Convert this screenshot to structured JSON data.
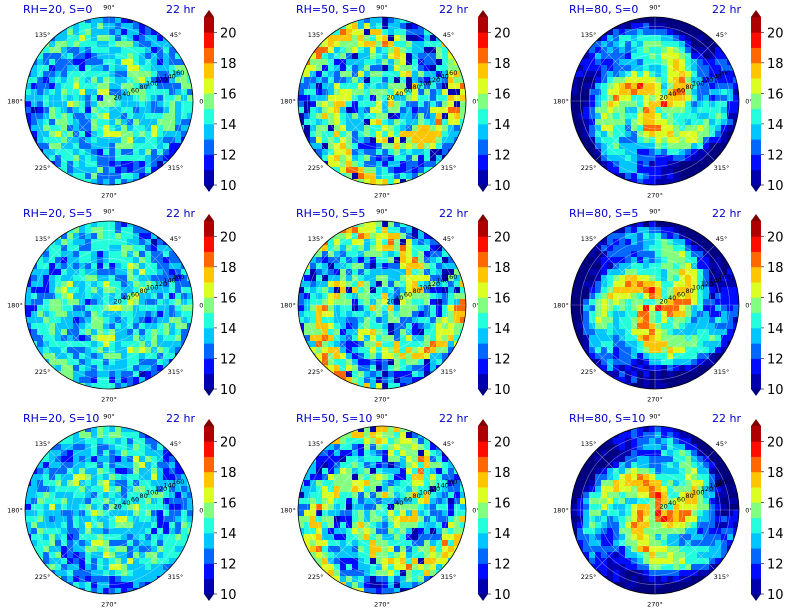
{
  "chart_data": {
    "type": "heatmap",
    "layout": {
      "rows": 3,
      "cols": 3
    },
    "angle_ticks": [
      {
        "deg": 90,
        "label": "90°"
      },
      {
        "deg": 45,
        "label": "45°"
      },
      {
        "deg": 0,
        "label": "0°"
      },
      {
        "deg": 315,
        "label": "315°"
      },
      {
        "deg": 270,
        "label": "270°"
      },
      {
        "deg": 225,
        "label": "225°"
      },
      {
        "deg": 180,
        "label": "180°"
      },
      {
        "deg": 135,
        "label": "135°"
      }
    ],
    "radial_ticks": [
      20,
      40,
      60,
      80,
      100,
      120,
      140,
      160
    ],
    "radial_max": 180,
    "colorbar": {
      "min": 10,
      "max": 21,
      "step": 1,
      "extend": "both",
      "tick_values": [
        10,
        12,
        14,
        16,
        18,
        20
      ],
      "colormap": "jet"
    },
    "panels": [
      {
        "left_title": "RH=20, S=0",
        "right_title": "22 hr",
        "rh": 20,
        "s": 0
      },
      {
        "left_title": "RH=50, S=0",
        "right_title": "22 hr",
        "rh": 50,
        "s": 0
      },
      {
        "left_title": "RH=80, S=0",
        "right_title": "22 hr",
        "rh": 80,
        "s": 0
      },
      {
        "left_title": "RH=20, S=5",
        "right_title": "22 hr",
        "rh": 20,
        "s": 5
      },
      {
        "left_title": "RH=50, S=5",
        "right_title": "22 hr",
        "rh": 50,
        "s": 5
      },
      {
        "left_title": "RH=80, S=5",
        "right_title": "22 hr",
        "rh": 80,
        "s": 5
      },
      {
        "left_title": "RH=20, S=10",
        "right_title": "22 hr",
        "rh": 20,
        "s": 10
      },
      {
        "left_title": "RH=50, S=10",
        "right_title": "22 hr",
        "rh": 50,
        "s": 10
      },
      {
        "left_title": "RH=80, S=10",
        "right_title": "22 hr",
        "rh": 80,
        "s": 10
      }
    ]
  }
}
